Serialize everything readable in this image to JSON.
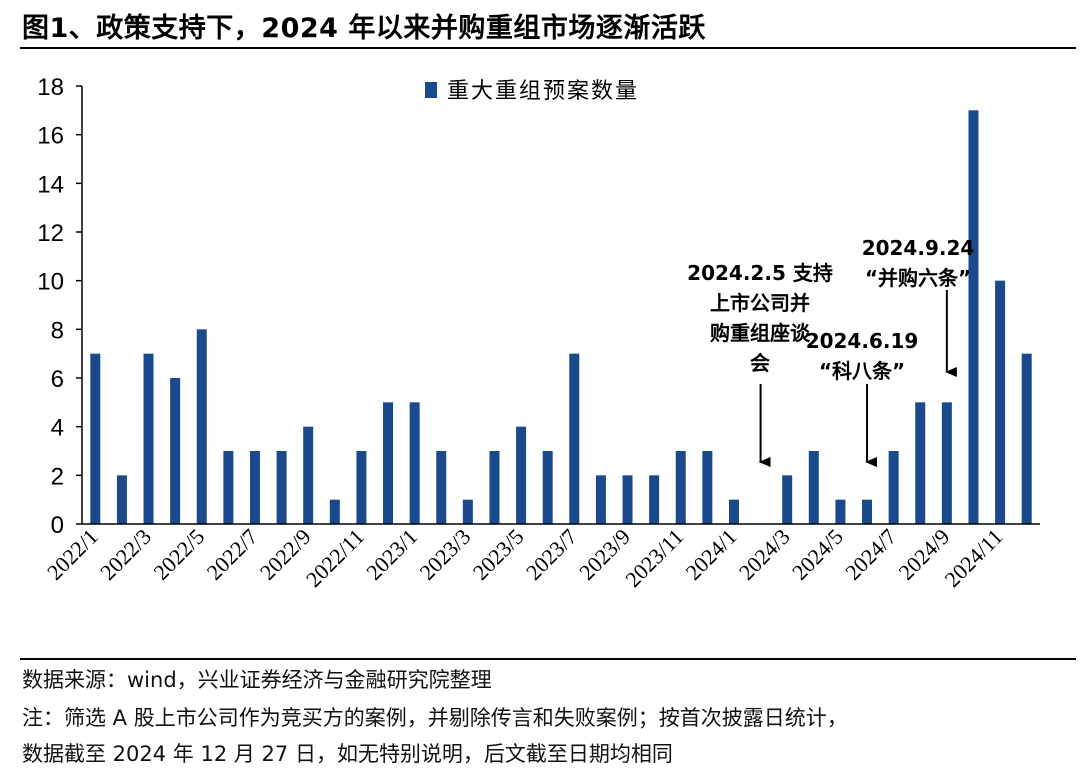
{
  "header": {
    "title": "图1、政策支持下，2024 年以来并购重组市场逐渐活跃"
  },
  "colors": {
    "bar": "#1a4a8c",
    "axis": "#000000",
    "text": "#000000"
  },
  "chart_data": {
    "type": "bar",
    "title": "",
    "xlabel": "",
    "ylabel": "",
    "ylim": [
      0,
      18
    ],
    "yticks": [
      0,
      2,
      4,
      6,
      8,
      10,
      12,
      14,
      16,
      18
    ],
    "legend": {
      "label": "重大重组预案数量",
      "position": "top-center"
    },
    "categories": [
      "2022/1",
      "2022/2",
      "2022/3",
      "2022/4",
      "2022/5",
      "2022/6",
      "2022/7",
      "2022/8",
      "2022/9",
      "2022/10",
      "2022/11",
      "2022/12",
      "2023/1",
      "2023/2",
      "2023/3",
      "2023/4",
      "2023/5",
      "2023/6",
      "2023/7",
      "2023/8",
      "2023/9",
      "2023/10",
      "2023/11",
      "2023/12",
      "2024/1",
      "2024/2",
      "2024/3",
      "2024/4",
      "2024/5",
      "2024/6",
      "2024/7",
      "2024/8",
      "2024/9",
      "2024/10",
      "2024/11",
      "2024/12"
    ],
    "x_tick_labels": [
      "2022/1",
      "2022/3",
      "2022/5",
      "2022/7",
      "2022/9",
      "2022/11",
      "2023/1",
      "2023/3",
      "2023/5",
      "2023/7",
      "2023/9",
      "2023/11",
      "2024/1",
      "2024/3",
      "2024/5",
      "2024/7",
      "2024/9",
      "2024/11"
    ],
    "series": [
      {
        "name": "重大重组预案数量",
        "values": [
          7,
          2,
          7,
          6,
          8,
          3,
          3,
          3,
          4,
          1,
          3,
          5,
          5,
          3,
          1,
          3,
          4,
          3,
          7,
          2,
          2,
          2,
          3,
          3,
          1,
          0,
          2,
          3,
          1,
          1,
          3,
          5,
          5,
          17,
          10,
          7
        ]
      }
    ],
    "annotations": [
      {
        "category": "2024/2",
        "lines": [
          "2024.2.5 支持",
          "上市公司并",
          "购重组座谈",
          "会"
        ]
      },
      {
        "category": "2024/6",
        "lines": [
          "2024.6.19",
          "“科八条”"
        ]
      },
      {
        "category": "2024/9",
        "lines": [
          "2024.9.24",
          "“并购六条”"
        ]
      }
    ]
  },
  "footer": {
    "source": "数据来源：wind，兴业证券经济与金融研究院整理",
    "note_line1": "注：筛选 A 股上市公司作为竞买方的案例，并剔除传言和失败案例；按首次披露日统计，",
    "note_line2": "数据截至 2024 年 12 月 27 日，如无特别说明，后文截至日期均相同"
  }
}
